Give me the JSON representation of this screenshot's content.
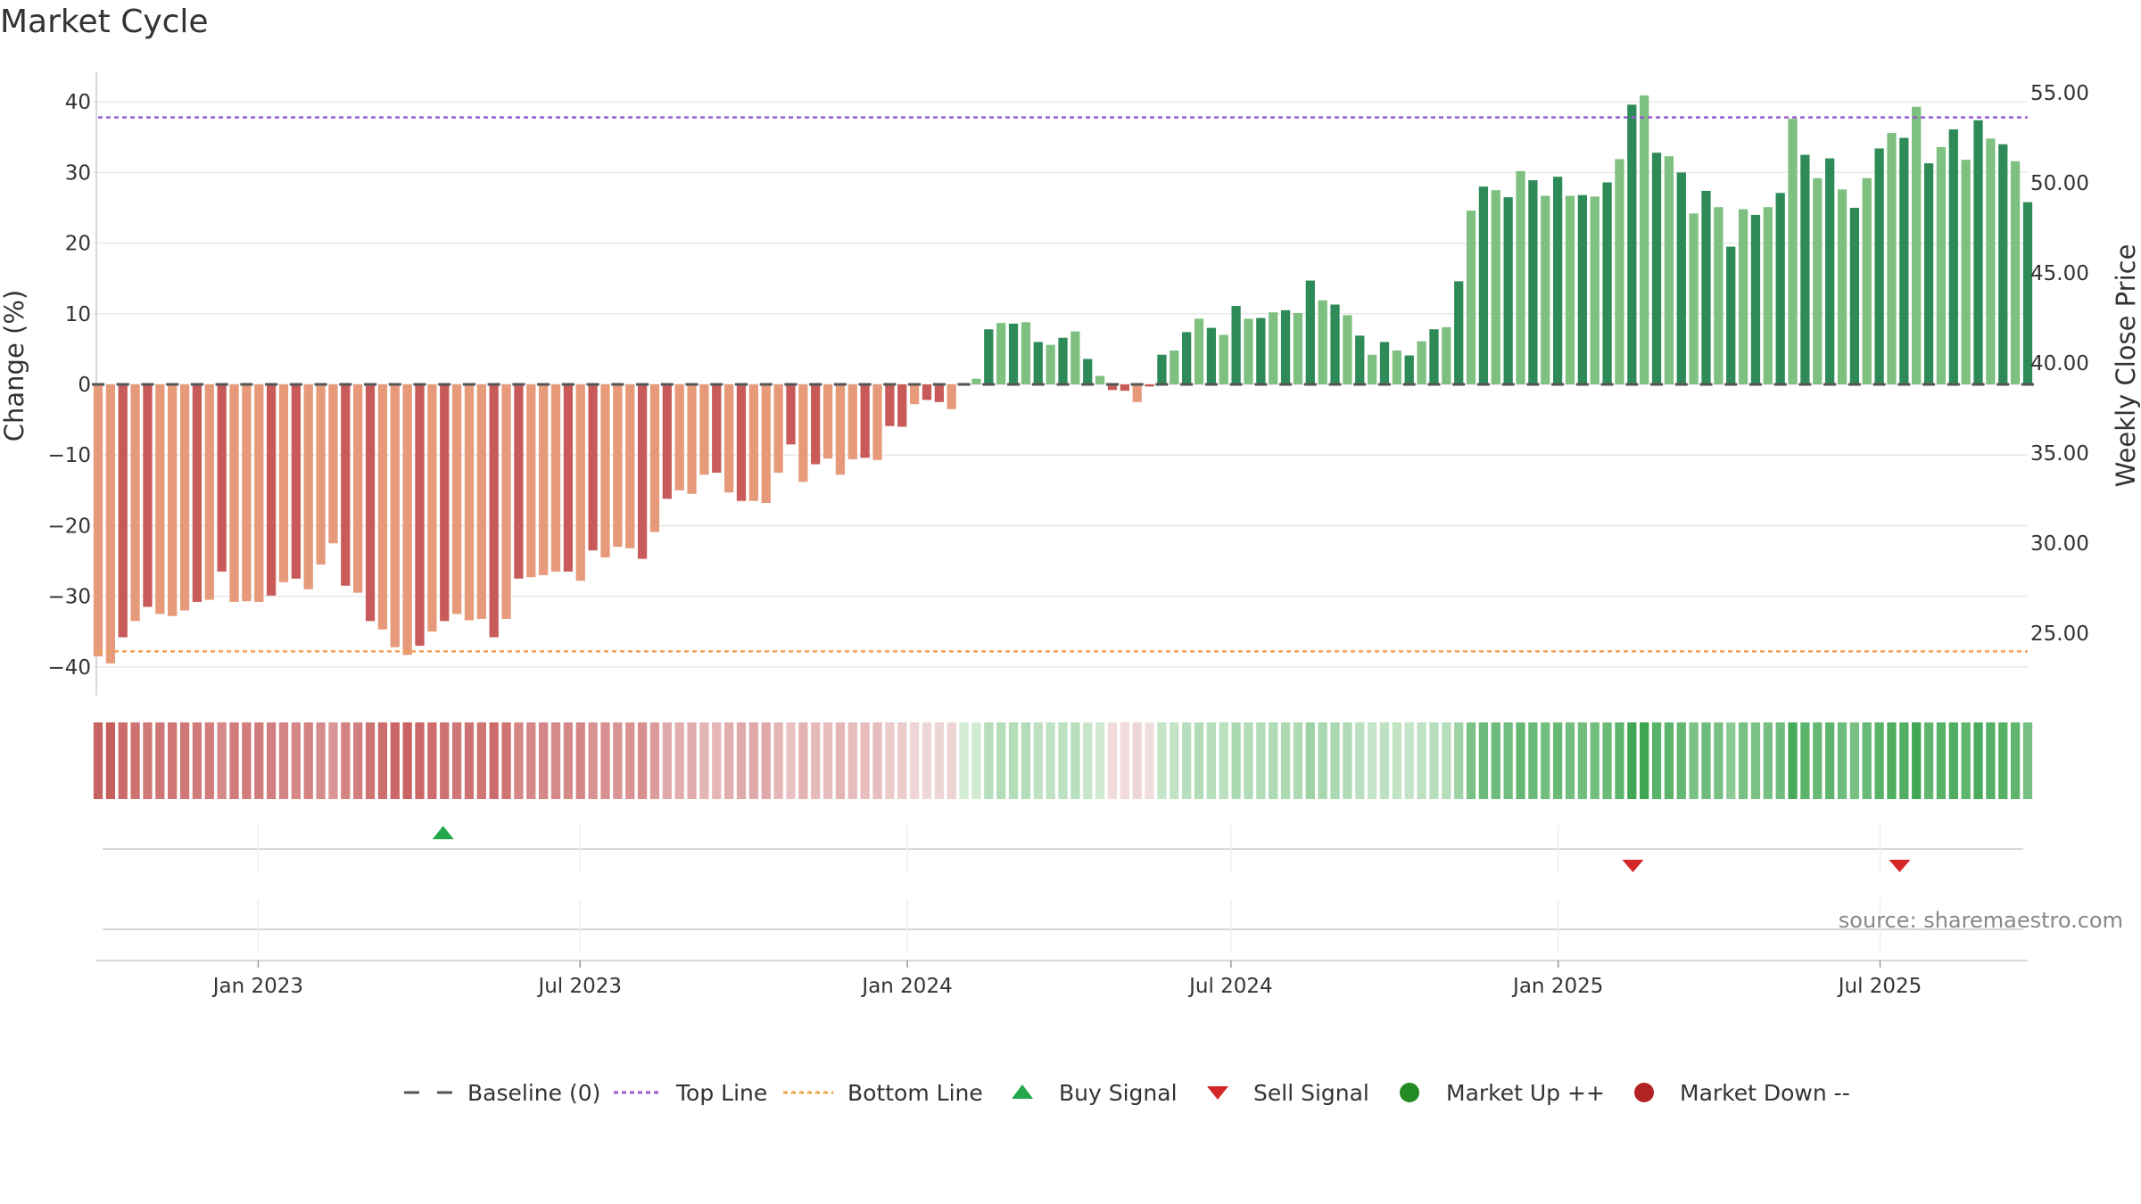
{
  "chart_data": {
    "type": "bar",
    "title": "Market Cycle",
    "ylabel_left": "Change (%)",
    "ylabel_right": "Weekly Close Price",
    "left_axis": {
      "ylim": [
        -45,
        45
      ],
      "ticks": [
        40,
        30,
        20,
        10,
        0,
        -10,
        -20,
        -30,
        -40
      ],
      "tick_labels": [
        "40",
        "30",
        "20",
        "10",
        "0",
        "−10",
        "−20",
        "−30",
        "−40"
      ]
    },
    "right_axis": {
      "ticks": [
        55,
        50,
        45,
        40,
        35,
        30,
        25
      ],
      "tick_labels": [
        "55.00",
        "50.00",
        "45.00",
        "40.00",
        "35.00",
        "30.00",
        "25.00"
      ]
    },
    "x_axis": {
      "start": "2022-10-03",
      "end": "2025-09-22",
      "ticks": [
        {
          "date": "2023-01-01",
          "label": "Jan 2023"
        },
        {
          "date": "2023-07-01",
          "label": "Jul 2023"
        },
        {
          "date": "2024-01-01",
          "label": "Jan 2024"
        },
        {
          "date": "2024-07-01",
          "label": "Jul 2024"
        },
        {
          "date": "2025-01-01",
          "label": "Jan 2025"
        },
        {
          "date": "2025-07-01",
          "label": "Jul 2025"
        }
      ]
    },
    "reference_lines": {
      "baseline": 0,
      "top_line": 37.8,
      "bottom_line": -37.8
    },
    "series": [
      {
        "name": "Change (%)",
        "first_week": "2022-10-03",
        "values": [
          -38.5,
          -39.5,
          -35.8,
          -33.5,
          -31.5,
          -32.5,
          -32.8,
          -32.0,
          -30.8,
          -30.5,
          -26.5,
          -30.8,
          -30.7,
          -30.8,
          -29.9,
          -28.0,
          -27.5,
          -29.0,
          -25.5,
          -22.5,
          -28.5,
          -29.5,
          -33.5,
          -34.7,
          -37.2,
          -38.3,
          -37.0,
          -35.0,
          -33.5,
          -32.5,
          -33.4,
          -33.2,
          -35.8,
          -33.2,
          -27.5,
          -27.3,
          -27.0,
          -26.5,
          -26.5,
          -27.8,
          -23.5,
          -24.5,
          -23.0,
          -23.2,
          -24.7,
          -20.9,
          -16.2,
          -15.0,
          -15.5,
          -12.8,
          -12.5,
          -15.3,
          -16.5,
          -16.5,
          -16.8,
          -12.5,
          -8.5,
          -13.8,
          -11.3,
          -10.5,
          -12.8,
          -10.6,
          -10.4,
          -10.7,
          -5.9,
          -6.0,
          -2.8,
          -2.2,
          -2.5,
          -3.5,
          0.2,
          0.8,
          7.8,
          8.7,
          8.6,
          8.8,
          6.0,
          5.6,
          6.6,
          7.5,
          3.6,
          1.2,
          -0.8,
          -0.9,
          -2.5,
          -0.3,
          4.2,
          4.8,
          7.4,
          9.3,
          8.0,
          7.0,
          11.1,
          9.3,
          9.4,
          10.2,
          10.5,
          10.1,
          14.7,
          11.9,
          11.3,
          9.8,
          6.9,
          4.2,
          6.0,
          4.8,
          4.1,
          6.1,
          7.8,
          8.1,
          14.6,
          24.6,
          28.0,
          27.5,
          26.5,
          30.2,
          28.9,
          26.7,
          29.4,
          26.7,
          26.8,
          26.6,
          28.6,
          31.9,
          39.6,
          40.9,
          32.8,
          32.3,
          30.0,
          24.2,
          27.4,
          25.1,
          19.5,
          24.8,
          24.0,
          25.1,
          27.1,
          37.6,
          32.5,
          29.2,
          32.0,
          27.6,
          25.0,
          29.2,
          33.4,
          35.6,
          34.9,
          39.3,
          31.3,
          33.6,
          36.1,
          31.8,
          37.4,
          34.8,
          34.0,
          31.6,
          25.8
        ]
      }
    ],
    "signals": {
      "buy": [
        "2023-04-15"
      ],
      "sell": [
        "2025-02-12",
        "2025-07-12"
      ]
    },
    "legend": {
      "placement": "bottom-center",
      "entries": [
        "Baseline (0)",
        "Top Line",
        "Bottom Line",
        "Buy Signal",
        "Sell Signal",
        "Market Up ++",
        "Market Down --"
      ]
    },
    "source": "source: sharemaestro.com",
    "colors": {
      "up_strong": "#2e8b57",
      "up_weak": "#7ec07f",
      "down_strong": "#c85a5a",
      "down_weak": "#e69a7a",
      "top_line": "#9b59d0",
      "bottom_line": "#f0a050",
      "baseline": "#555555",
      "buy": "#22a84a",
      "sell": "#d62728",
      "market_up": "#228b22",
      "market_down": "#b22222",
      "heat_neg_strong": [
        200,
        95,
        95
      ],
      "heat_neg_weak": [
        242,
        222,
        222
      ],
      "heat_pos_weak": [
        212,
        236,
        213
      ],
      "heat_pos_strong": [
        60,
        165,
        80
      ],
      "grid": "#e8e8e8"
    }
  }
}
